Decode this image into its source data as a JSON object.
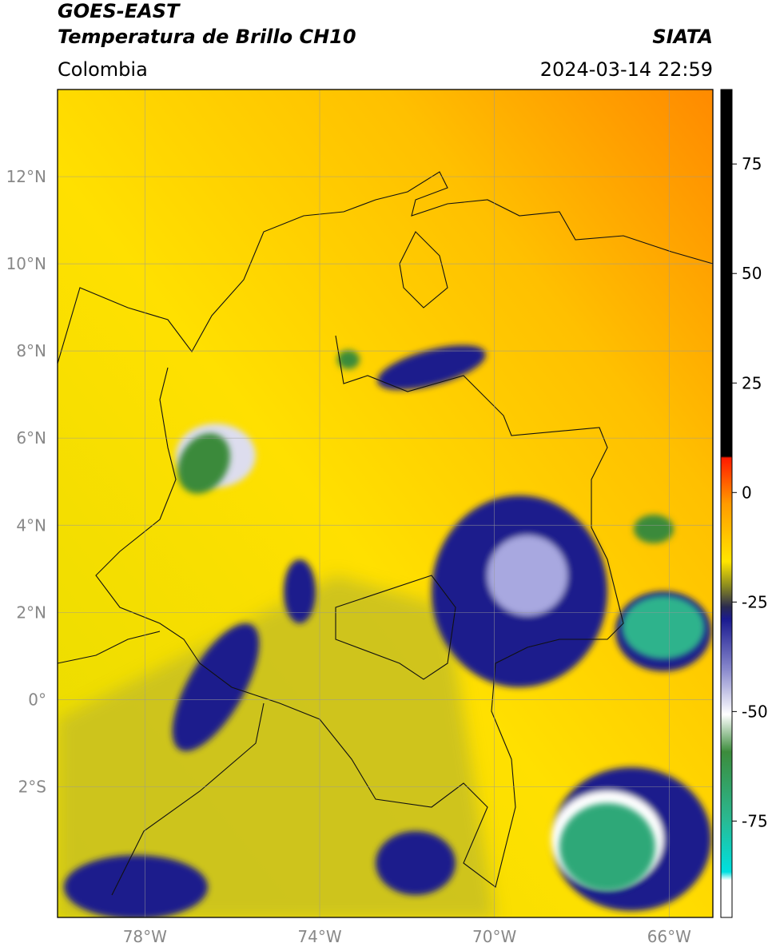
{
  "header": {
    "title": "GOES-EAST",
    "subtitle": "Temperatura de Brillo CH10",
    "source": "SIATA",
    "region": "Colombia",
    "datetime": "2024-03-14 22:59"
  },
  "map": {
    "xlim": [
      -80,
      -65
    ],
    "ylim": [
      -5,
      14
    ],
    "xticks": [
      {
        "value": -78,
        "label": "78°W"
      },
      {
        "value": -74,
        "label": "74°W"
      },
      {
        "value": -70,
        "label": "70°W"
      },
      {
        "value": -66,
        "label": "66°W"
      }
    ],
    "yticks": [
      {
        "value": 12,
        "label": "12°N"
      },
      {
        "value": 10,
        "label": "10°N"
      },
      {
        "value": 8,
        "label": "8°N"
      },
      {
        "value": 6,
        "label": "6°N"
      },
      {
        "value": 4,
        "label": "4°N"
      },
      {
        "value": 2,
        "label": "2°N"
      },
      {
        "value": 0,
        "label": "0°"
      },
      {
        "value": -2,
        "label": "2°S"
      }
    ]
  },
  "colorbar": {
    "lim": [
      -97,
      92
    ],
    "ticks": [
      75,
      50,
      25,
      0,
      -25,
      -50,
      -75
    ]
  }
}
